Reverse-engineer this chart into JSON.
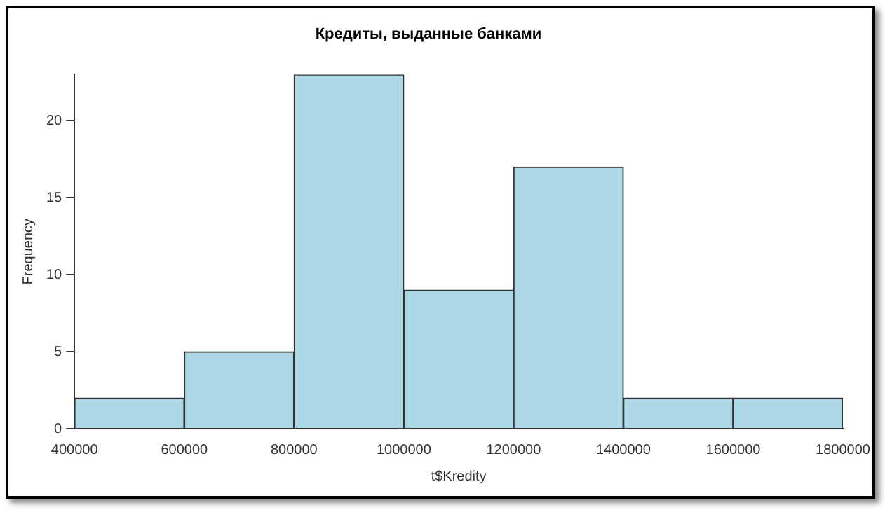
{
  "chart_data": {
    "type": "histogram",
    "title": "Кредиты, выданные банками",
    "xlabel": "t$Kredity",
    "ylabel": "Frequency",
    "bins": [
      400000,
      600000,
      800000,
      1000000,
      1200000,
      1400000,
      1600000,
      1800000
    ],
    "values": [
      2,
      5,
      23,
      9,
      17,
      2,
      2
    ],
    "color": "#add8e6",
    "xlim": [
      400000,
      1800000
    ],
    "xticks": [
      400000,
      600000,
      800000,
      1000000,
      1200000,
      1400000,
      1600000,
      1800000
    ],
    "ylim": [
      0,
      23
    ],
    "yticks": [
      0,
      5,
      10,
      15,
      20
    ],
    "grid": false,
    "legend": false
  }
}
